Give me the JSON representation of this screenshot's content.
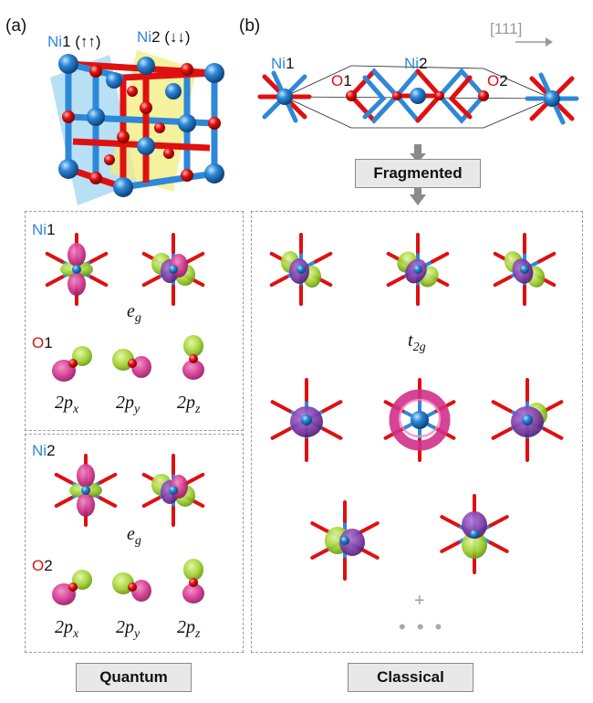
{
  "panel_a": {
    "label": "(a)",
    "ni1": {
      "element": "Ni",
      "index": "1",
      "spin": "(↑↑)"
    },
    "ni2": {
      "element": "Ni",
      "index": "2",
      "spin": "(↓↓)"
    }
  },
  "panel_b": {
    "label": "(b)",
    "direction": "[111]",
    "atoms": [
      {
        "element": "Ni",
        "index": "1"
      },
      {
        "element": "O",
        "index": "1"
      },
      {
        "element": "Ni",
        "index": "2"
      },
      {
        "element": "O",
        "index": "2"
      }
    ],
    "fragmented_label": "Fragmented"
  },
  "quantum_box": {
    "label": "Quantum",
    "ni1_section": {
      "ni_label": {
        "element": "Ni",
        "index": "1"
      },
      "eg_label": {
        "base": "e",
        "sub": "g"
      },
      "o_label": {
        "element": "O",
        "index": "1"
      },
      "p_labels": [
        {
          "base": "2p",
          "sub": "x"
        },
        {
          "base": "2p",
          "sub": "y"
        },
        {
          "base": "2p",
          "sub": "z"
        }
      ]
    },
    "ni2_section": {
      "ni_label": {
        "element": "Ni",
        "index": "2"
      },
      "eg_label": {
        "base": "e",
        "sub": "g"
      },
      "o_label": {
        "element": "O",
        "index": "2"
      },
      "p_labels": [
        {
          "base": "2p",
          "sub": "x"
        },
        {
          "base": "2p",
          "sub": "y"
        },
        {
          "base": "2p",
          "sub": "z"
        }
      ]
    }
  },
  "classical_box": {
    "label": "Classical",
    "t2g_label": {
      "base": "t",
      "sub": "2g"
    },
    "plus": "+",
    "ellipsis": "• • •"
  },
  "colors": {
    "nickel": "#2e88d8",
    "oxygen": "#e01010",
    "lobe_magenta": "#d0308a",
    "lobe_green": "#9ccf2a",
    "plane_blue": "#9fd6f2",
    "plane_yellow": "#f3ec7c"
  }
}
